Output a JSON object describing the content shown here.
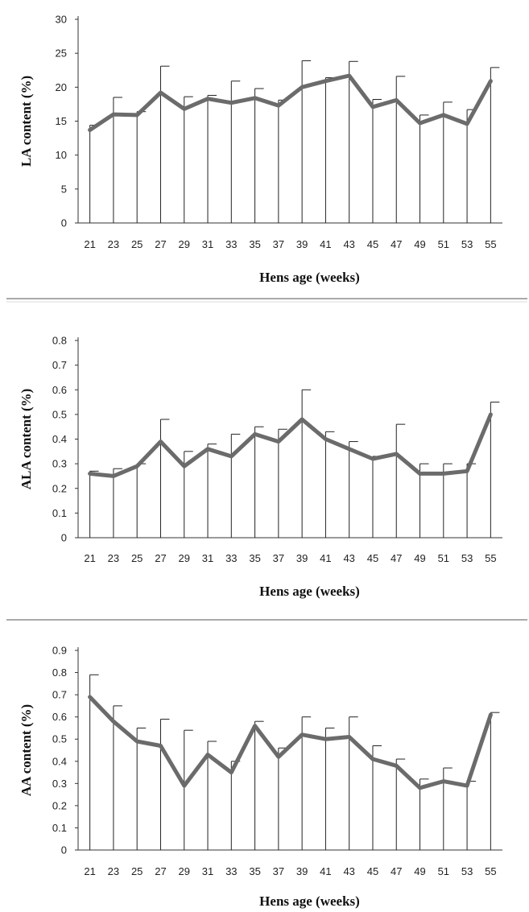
{
  "chart_data": [
    {
      "type": "line",
      "xlabel": "Hens age (weeks)",
      "ylabel": "LA content (%)",
      "ylim": [
        0,
        30
      ],
      "yticks": [
        0,
        5,
        10,
        15,
        20,
        25,
        30
      ],
      "x": [
        21,
        23,
        25,
        27,
        29,
        31,
        33,
        35,
        37,
        39,
        41,
        43,
        45,
        47,
        49,
        51,
        53,
        55
      ],
      "series": [
        {
          "values": [
            13.7,
            16.0,
            15.9,
            19.2,
            16.8,
            18.3,
            17.7,
            18.4,
            17.3,
            20.0,
            20.9,
            21.7,
            17.1,
            18.1,
            14.7,
            15.9,
            14.6,
            20.9
          ],
          "error_upper": [
            14.4,
            18.5,
            16.4,
            23.1,
            18.6,
            18.8,
            20.9,
            19.8,
            18.1,
            23.9,
            21.4,
            23.8,
            18.2,
            21.6,
            15.9,
            17.8,
            16.7,
            22.9
          ],
          "color": "#6b6b6b"
        }
      ],
      "grid": false
    },
    {
      "type": "line",
      "xlabel": "Hens age (weeks)",
      "ylabel": "ALA content  (%)",
      "ylim": [
        0,
        0.8
      ],
      "yticks": [
        0,
        0.1,
        0.2,
        0.3,
        0.4,
        0.5,
        0.6,
        0.7,
        0.8
      ],
      "x": [
        21,
        23,
        25,
        27,
        29,
        31,
        33,
        35,
        37,
        39,
        41,
        43,
        45,
        47,
        49,
        51,
        53,
        55
      ],
      "series": [
        {
          "values": [
            0.26,
            0.25,
            0.29,
            0.39,
            0.29,
            0.36,
            0.33,
            0.42,
            0.39,
            0.48,
            0.4,
            0.36,
            0.32,
            0.34,
            0.26,
            0.26,
            0.27,
            0.5
          ],
          "error_upper": [
            0.27,
            0.28,
            0.3,
            0.48,
            0.35,
            0.38,
            0.42,
            0.45,
            0.44,
            0.6,
            0.43,
            0.39,
            0.33,
            0.46,
            0.3,
            0.3,
            0.3,
            0.55
          ],
          "color": "#6b6b6b"
        }
      ],
      "grid": false
    },
    {
      "type": "line",
      "xlabel": "Hens age (weeks)",
      "ylabel": "AA content (%)",
      "ylim": [
        0,
        0.9
      ],
      "yticks": [
        0,
        0.1,
        0.2,
        0.3,
        0.4,
        0.5,
        0.6,
        0.7,
        0.8,
        0.9
      ],
      "x": [
        21,
        23,
        25,
        27,
        29,
        31,
        33,
        35,
        37,
        39,
        41,
        43,
        45,
        47,
        49,
        51,
        53,
        55
      ],
      "series": [
        {
          "values": [
            0.69,
            0.58,
            0.49,
            0.47,
            0.29,
            0.43,
            0.35,
            0.56,
            0.42,
            0.52,
            0.5,
            0.51,
            0.41,
            0.38,
            0.28,
            0.31,
            0.29,
            0.61
          ],
          "error_upper": [
            0.79,
            0.65,
            0.55,
            0.59,
            0.54,
            0.49,
            0.4,
            0.58,
            0.46,
            0.6,
            0.55,
            0.6,
            0.47,
            0.41,
            0.32,
            0.37,
            0.31,
            0.62
          ],
          "color": "#6b6b6b"
        }
      ],
      "grid": false
    }
  ]
}
